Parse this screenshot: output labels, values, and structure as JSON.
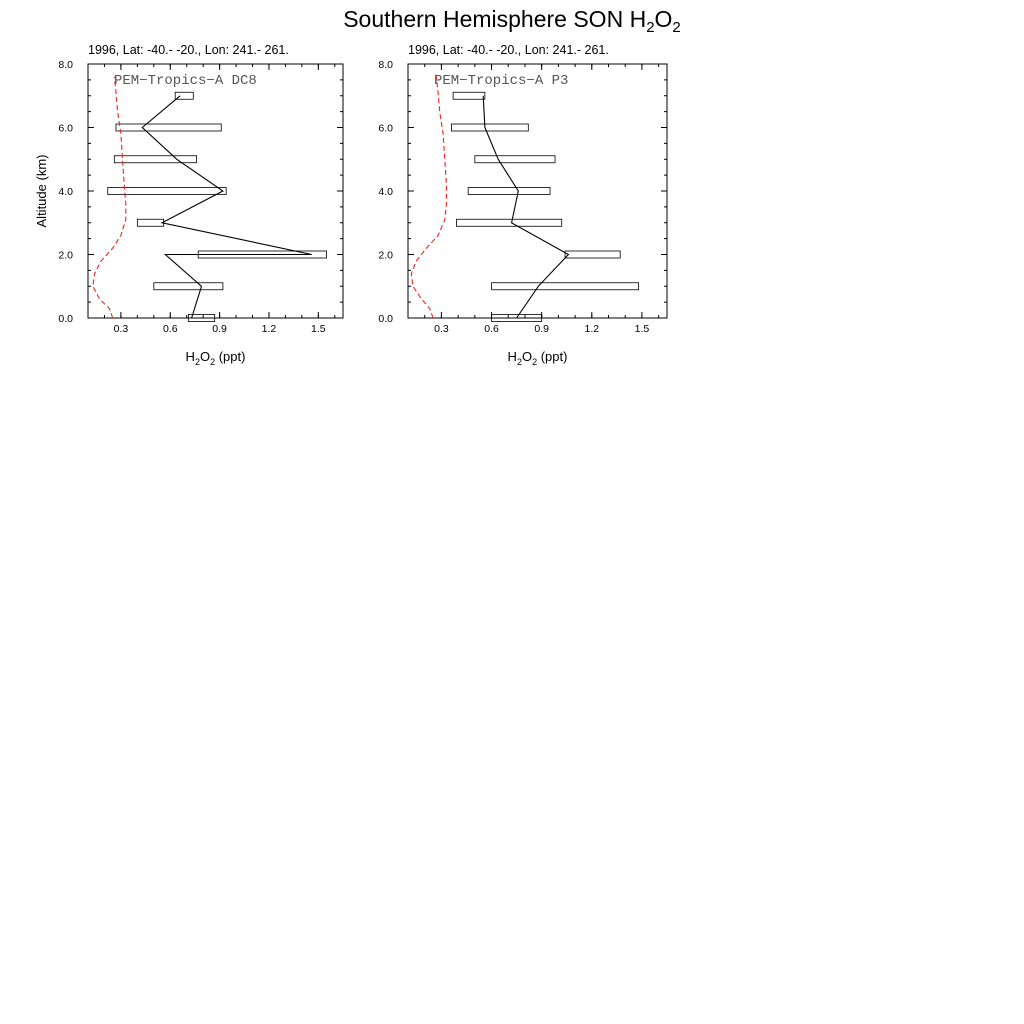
{
  "figure": {
    "title_main": "Southern Hemisphere SON H",
    "title_sub1": "2",
    "title_mid": "O",
    "title_sub2": "2"
  },
  "chart_data": [
    {
      "type": "line",
      "subtitle": "1996, Lat: -40.- -20., Lon: 241.- 261.",
      "label": "PEM−Tropics−A DC8",
      "ylabel": "Altitude (km)",
      "xlabel_main": "H",
      "xlabel_sub1": "2",
      "xlabel_mid": "O",
      "xlabel_sub2": "2",
      "xlabel_unit": " (ppt)",
      "xlim": [
        0.1,
        1.65
      ],
      "ylim": [
        0,
        8
      ],
      "x_ticks": [
        "0.3",
        "0.6",
        "0.9",
        "1.2",
        "1.5"
      ],
      "y_ticks": [
        "0.0",
        "2.0",
        "4.0",
        "6.0",
        "8.0"
      ],
      "observed": {
        "x": [
          0.73,
          0.79,
          0.57,
          1.46,
          0.55,
          0.92,
          0.64,
          0.43,
          0.66
        ],
        "y": [
          0.0,
          1.0,
          2.0,
          2.0,
          3.0,
          4.0,
          5.0,
          6.0,
          7.0
        ]
      },
      "boxes": [
        {
          "y": 0.0,
          "x_low": 0.71,
          "x_high": 0.87
        },
        {
          "y": 1.0,
          "x_low": 0.5,
          "x_high": 0.92
        },
        {
          "y": 2.0,
          "x_low": 0.77,
          "x_high": 1.55
        },
        {
          "y": 3.0,
          "x_low": 0.4,
          "x_high": 0.56
        },
        {
          "y": 4.0,
          "x_low": 0.22,
          "x_high": 0.94
        },
        {
          "y": 5.0,
          "x_low": 0.26,
          "x_high": 0.76
        },
        {
          "y": 6.0,
          "x_low": 0.27,
          "x_high": 0.91
        },
        {
          "y": 7.0,
          "x_low": 0.63,
          "x_high": 0.74
        }
      ],
      "model": {
        "x": [
          0.25,
          0.23,
          0.17,
          0.13,
          0.14,
          0.18,
          0.25,
          0.3,
          0.33,
          0.33,
          0.32,
          0.31,
          0.3,
          0.28,
          0.27,
          0.26
        ],
        "y": [
          0.0,
          0.3,
          0.6,
          1.0,
          1.4,
          1.8,
          2.2,
          2.6,
          3.1,
          3.6,
          4.2,
          5.0,
          5.8,
          6.5,
          7.1,
          7.6
        ],
        "color": "#e8271f"
      }
    },
    {
      "type": "line",
      "subtitle": "1996, Lat: -40.- -20., Lon: 241.- 261.",
      "label": "PEM−Tropics−A P3",
      "ylabel": "",
      "xlabel_main": "H",
      "xlabel_sub1": "2",
      "xlabel_mid": "O",
      "xlabel_sub2": "2",
      "xlabel_unit": " (ppt)",
      "xlim": [
        0.1,
        1.65
      ],
      "ylim": [
        0,
        8
      ],
      "x_ticks": [
        "0.3",
        "0.6",
        "0.9",
        "1.2",
        "1.5"
      ],
      "y_ticks": [
        "0.0",
        "2.0",
        "4.0",
        "6.0",
        "8.0"
      ],
      "observed": {
        "x": [
          0.75,
          0.88,
          1.06,
          0.72,
          0.76,
          0.64,
          0.56,
          0.55
        ],
        "y": [
          0.0,
          1.0,
          2.0,
          3.0,
          4.0,
          5.0,
          6.0,
          7.0
        ]
      },
      "boxes": [
        {
          "y": 0.0,
          "x_low": 0.6,
          "x_high": 0.9
        },
        {
          "y": 1.0,
          "x_low": 0.6,
          "x_high": 1.48
        },
        {
          "y": 2.0,
          "x_low": 1.04,
          "x_high": 1.37
        },
        {
          "y": 3.0,
          "x_low": 0.39,
          "x_high": 1.02
        },
        {
          "y": 4.0,
          "x_low": 0.46,
          "x_high": 0.95
        },
        {
          "y": 5.0,
          "x_low": 0.5,
          "x_high": 0.98
        },
        {
          "y": 6.0,
          "x_low": 0.36,
          "x_high": 0.82
        },
        {
          "y": 7.0,
          "x_low": 0.37,
          "x_high": 0.56
        }
      ],
      "model": {
        "x": [
          0.25,
          0.23,
          0.18,
          0.13,
          0.12,
          0.15,
          0.21,
          0.28,
          0.32,
          0.33,
          0.33,
          0.32,
          0.31,
          0.29,
          0.28,
          0.27
        ],
        "y": [
          0.0,
          0.3,
          0.6,
          1.0,
          1.4,
          1.8,
          2.2,
          2.6,
          3.1,
          3.6,
          4.2,
          5.0,
          5.8,
          6.5,
          7.1,
          7.6
        ],
        "color": "#e8271f"
      }
    }
  ]
}
